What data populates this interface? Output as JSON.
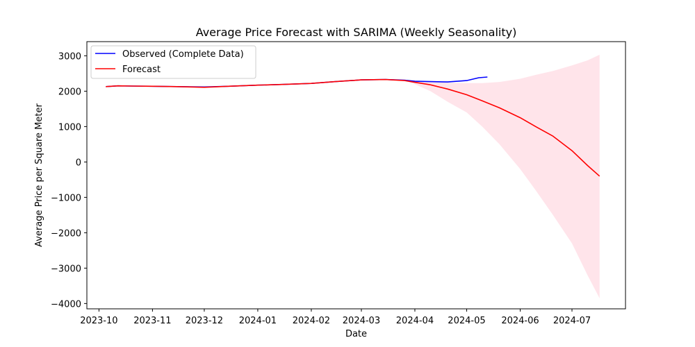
{
  "chart_data": {
    "type": "line",
    "title": "Average Price Forecast with SARIMA (Weekly Seasonality)",
    "xlabel": "Date",
    "ylabel": "Average Price per Square Meter",
    "xlim": [
      "2023-09-24",
      "2024-08-01"
    ],
    "ylim": [
      -4150,
      3400
    ],
    "x_ticks": [
      "2023-10-01",
      "2023-11-01",
      "2023-12-01",
      "2024-01-01",
      "2024-02-01",
      "2024-03-01",
      "2024-04-01",
      "2024-05-01",
      "2024-06-01",
      "2024-07-01"
    ],
    "x_tick_labels": [
      "2023-10",
      "2023-11",
      "2023-12",
      "2024-01",
      "2024-02",
      "2024-03",
      "2024-04",
      "2024-05",
      "2024-06",
      "2024-07"
    ],
    "y_ticks": [
      -4000,
      -3000,
      -2000,
      -1000,
      0,
      1000,
      2000,
      3000
    ],
    "y_tick_labels": [
      "−4000",
      "−3000",
      "−2000",
      "−1000",
      "0",
      "1000",
      "2000",
      "3000"
    ],
    "legend_position": "top-left",
    "grid": false,
    "series": [
      {
        "name": "Observed (Complete Data)",
        "color": "#0000ff",
        "x": [
          "2023-10-05",
          "2023-10-12",
          "2023-10-20",
          "2023-11-01",
          "2023-11-15",
          "2023-12-01",
          "2023-12-15",
          "2024-01-01",
          "2024-01-15",
          "2024-02-01",
          "2024-02-15",
          "2024-03-01",
          "2024-03-15",
          "2024-03-26",
          "2024-04-01",
          "2024-04-10",
          "2024-04-20",
          "2024-05-01",
          "2024-05-08",
          "2024-05-13"
        ],
        "y": [
          2130,
          2150,
          2145,
          2140,
          2130,
          2120,
          2140,
          2170,
          2190,
          2220,
          2270,
          2320,
          2330,
          2310,
          2280,
          2270,
          2260,
          2300,
          2380,
          2400
        ]
      },
      {
        "name": "Forecast",
        "color": "#ff0000",
        "x": [
          "2023-10-05",
          "2023-10-12",
          "2023-10-20",
          "2023-11-01",
          "2023-11-15",
          "2023-12-01",
          "2023-12-15",
          "2024-01-01",
          "2024-01-15",
          "2024-02-01",
          "2024-02-15",
          "2024-03-01",
          "2024-03-15",
          "2024-03-26",
          "2024-04-01",
          "2024-04-10",
          "2024-04-20",
          "2024-05-01",
          "2024-05-10",
          "2024-05-20",
          "2024-06-01",
          "2024-06-10",
          "2024-06-20",
          "2024-07-01",
          "2024-07-10",
          "2024-07-17"
        ],
        "y": [
          2130,
          2150,
          2145,
          2140,
          2130,
          2110,
          2140,
          2170,
          2190,
          2220,
          2270,
          2320,
          2330,
          2300,
          2250,
          2180,
          2060,
          1900,
          1730,
          1530,
          1250,
          1000,
          730,
          320,
          -100,
          -400
        ]
      }
    ],
    "confidence_band": {
      "color": "#ffe4ea",
      "x": [
        "2024-03-26",
        "2024-04-01",
        "2024-04-10",
        "2024-04-20",
        "2024-05-01",
        "2024-05-10",
        "2024-05-20",
        "2024-06-01",
        "2024-06-10",
        "2024-06-20",
        "2024-07-01",
        "2024-07-10",
        "2024-07-17"
      ],
      "upper": [
        2300,
        2280,
        2260,
        2240,
        2230,
        2230,
        2260,
        2350,
        2460,
        2570,
        2730,
        2870,
        3030
      ],
      "lower": [
        2300,
        2200,
        2000,
        1700,
        1400,
        1000,
        500,
        -200,
        -800,
        -1500,
        -2300,
        -3200,
        -3850
      ]
    }
  }
}
